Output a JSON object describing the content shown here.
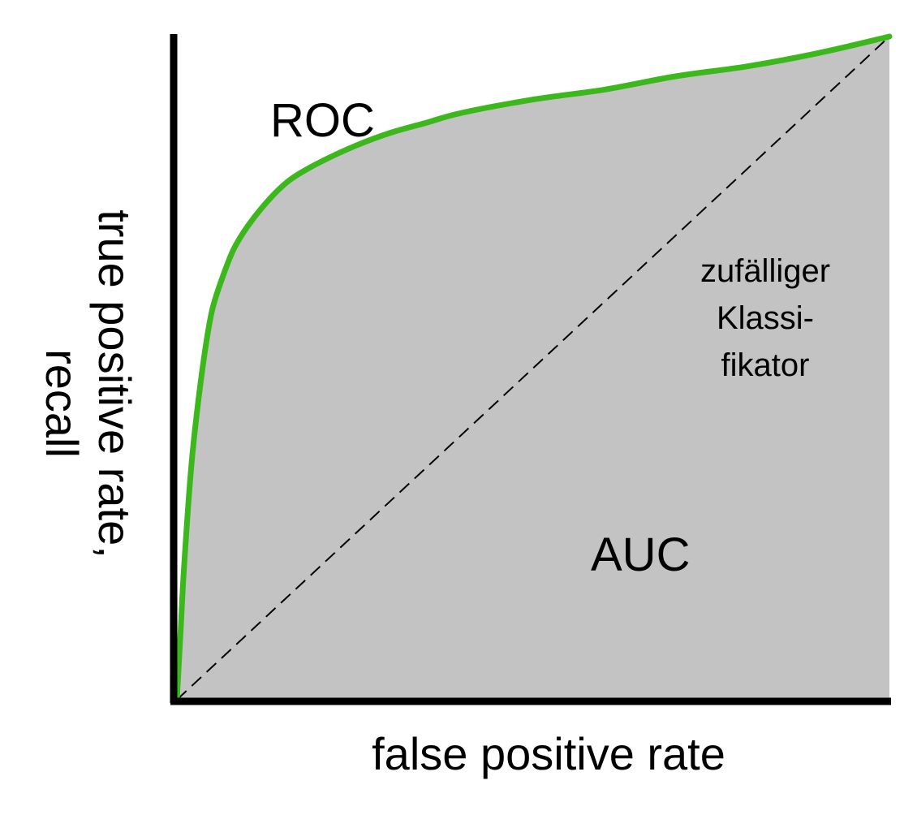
{
  "chart_data": {
    "type": "area",
    "title": "",
    "xlabel": "false positive rate",
    "ylabel_lines": [
      "true positive rate,",
      "recall"
    ],
    "xlim": [
      0,
      1
    ],
    "ylim": [
      0,
      1
    ],
    "grid": false,
    "series": [
      {
        "name": "ROC",
        "style": "line-with-shaded-area",
        "x": [
          0,
          0.005,
          0.01,
          0.02,
          0.03,
          0.04,
          0.05,
          0.065,
          0.08,
          0.1,
          0.13,
          0.16,
          0.2,
          0.25,
          0.3,
          0.35,
          0.4,
          0.5,
          0.6,
          0.7,
          0.8,
          0.9,
          1.0
        ],
        "y": [
          0,
          0.1,
          0.2,
          0.35,
          0.45,
          0.53,
          0.59,
          0.64,
          0.68,
          0.715,
          0.755,
          0.785,
          0.81,
          0.835,
          0.855,
          0.87,
          0.885,
          0.905,
          0.92,
          0.94,
          0.955,
          0.975,
          1.0
        ]
      },
      {
        "name": "zufälliger Klassifikator",
        "style": "dashed-diagonal",
        "x": [
          0,
          1
        ],
        "y": [
          0,
          1
        ]
      }
    ],
    "annotations": {
      "roc": "ROC",
      "auc": "AUC",
      "random_lines": [
        "zufälliger",
        "Klassi-",
        "fikator"
      ]
    },
    "colors": {
      "roc_line": "#3cb81c",
      "area_fill": "#c3c3c3",
      "axes": "#000000",
      "diagonal": "#000000"
    }
  }
}
